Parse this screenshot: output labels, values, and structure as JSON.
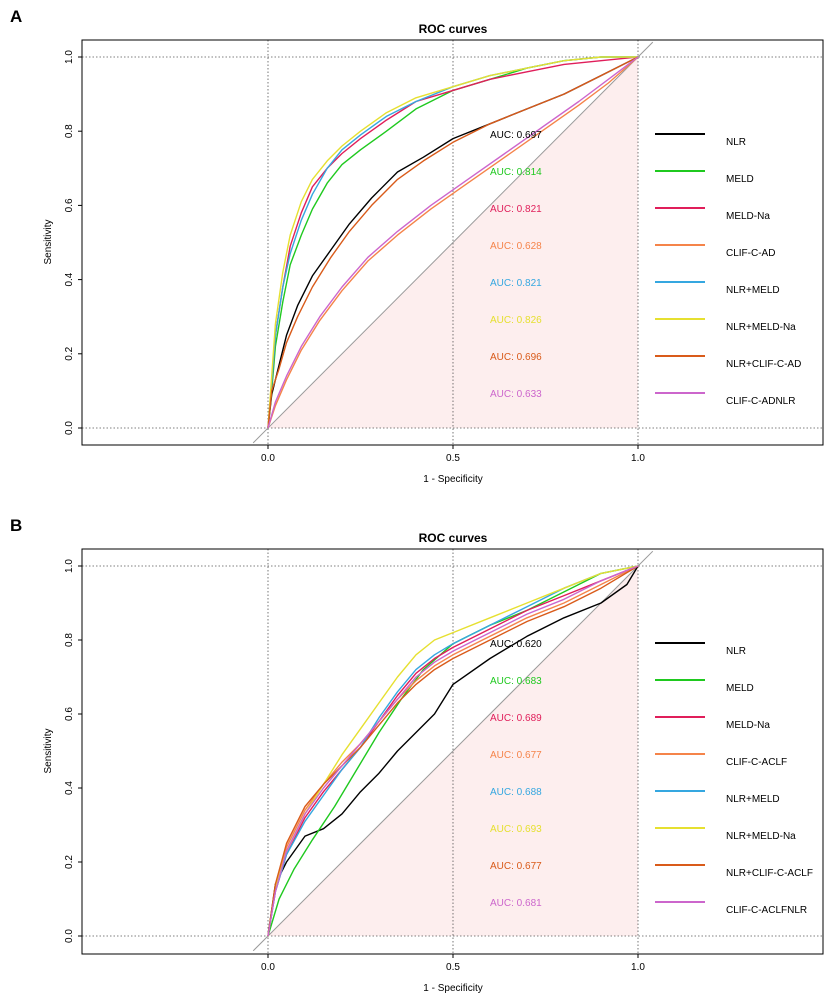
{
  "chart_data": [
    {
      "type": "line",
      "panel": "A",
      "title": "ROC curves",
      "xlabel": "1 - Specificity",
      "ylabel": "Sensitivity",
      "xlim": [
        -0.5,
        1.5
      ],
      "ylim": [
        0,
        1
      ],
      "xticks": [
        "0.0",
        "0.5",
        "1.0"
      ],
      "yticks": [
        "0.0",
        "0.2",
        "0.4",
        "0.6",
        "0.8",
        "1.0"
      ],
      "legend_position": "right",
      "series": [
        {
          "name": "NLR",
          "auc": "AUC: 0.697",
          "color": "#000000",
          "x": [
            0,
            0.01,
            0.03,
            0.05,
            0.08,
            0.12,
            0.17,
            0.22,
            0.28,
            0.35,
            0.42,
            0.5,
            0.6,
            0.7,
            0.8,
            0.9,
            1.0
          ],
          "y": [
            0,
            0.09,
            0.17,
            0.25,
            0.33,
            0.41,
            0.48,
            0.55,
            0.62,
            0.69,
            0.73,
            0.78,
            0.82,
            0.86,
            0.9,
            0.95,
            1.0
          ]
        },
        {
          "name": "MELD",
          "auc": "AUC: 0.814",
          "color": "#1fc91f",
          "x": [
            0,
            0.01,
            0.02,
            0.04,
            0.06,
            0.09,
            0.12,
            0.16,
            0.2,
            0.25,
            0.32,
            0.4,
            0.5,
            0.6,
            0.7,
            0.8,
            0.9,
            1.0
          ],
          "y": [
            0,
            0.1,
            0.22,
            0.34,
            0.44,
            0.52,
            0.59,
            0.66,
            0.71,
            0.75,
            0.8,
            0.86,
            0.91,
            0.94,
            0.97,
            0.99,
            1.0,
            1.0
          ]
        },
        {
          "name": "MELD-Na",
          "auc": "AUC: 0.821",
          "color": "#e01e5a",
          "x": [
            0,
            0.01,
            0.02,
            0.04,
            0.06,
            0.09,
            0.12,
            0.16,
            0.2,
            0.25,
            0.32,
            0.4,
            0.5,
            0.6,
            0.7,
            0.8,
            0.9,
            1.0
          ],
          "y": [
            0,
            0.12,
            0.25,
            0.38,
            0.49,
            0.58,
            0.65,
            0.7,
            0.74,
            0.78,
            0.83,
            0.88,
            0.91,
            0.94,
            0.96,
            0.98,
            0.99,
            1.0
          ]
        },
        {
          "name": "CLIF-C-AD",
          "auc": "AUC: 0.628",
          "color": "#f5844a",
          "x": [
            0,
            0.02,
            0.05,
            0.09,
            0.14,
            0.2,
            0.27,
            0.35,
            0.44,
            0.54,
            0.64,
            0.74,
            0.84,
            0.92,
            1.0
          ],
          "y": [
            0,
            0.06,
            0.13,
            0.21,
            0.29,
            0.37,
            0.45,
            0.52,
            0.59,
            0.66,
            0.73,
            0.8,
            0.87,
            0.93,
            1.0
          ]
        },
        {
          "name": "NLR+MELD",
          "auc": "AUC: 0.821",
          "color": "#35a7e0",
          "x": [
            0,
            0.01,
            0.02,
            0.04,
            0.06,
            0.09,
            0.12,
            0.16,
            0.2,
            0.25,
            0.32,
            0.4,
            0.5,
            0.6,
            0.7,
            0.8,
            0.9,
            1.0
          ],
          "y": [
            0,
            0.12,
            0.25,
            0.38,
            0.47,
            0.56,
            0.63,
            0.7,
            0.75,
            0.79,
            0.84,
            0.88,
            0.92,
            0.95,
            0.97,
            0.99,
            1.0,
            1.0
          ]
        },
        {
          "name": "NLR+MELD-Na",
          "auc": "AUC: 0.826",
          "color": "#e6e030",
          "x": [
            0,
            0.01,
            0.02,
            0.04,
            0.06,
            0.09,
            0.12,
            0.16,
            0.2,
            0.25,
            0.32,
            0.4,
            0.5,
            0.6,
            0.7,
            0.8,
            0.9,
            1.0
          ],
          "y": [
            0,
            0.14,
            0.28,
            0.42,
            0.52,
            0.61,
            0.67,
            0.72,
            0.76,
            0.8,
            0.85,
            0.89,
            0.92,
            0.95,
            0.97,
            0.99,
            1.0,
            1.0
          ]
        },
        {
          "name": "NLR+CLIF-C-AD",
          "auc": "AUC: 0.696",
          "color": "#d95b1a",
          "x": [
            0,
            0.01,
            0.03,
            0.05,
            0.08,
            0.12,
            0.17,
            0.22,
            0.28,
            0.35,
            0.42,
            0.5,
            0.6,
            0.7,
            0.8,
            0.9,
            1.0
          ],
          "y": [
            0,
            0.1,
            0.16,
            0.23,
            0.3,
            0.38,
            0.46,
            0.53,
            0.6,
            0.67,
            0.72,
            0.77,
            0.82,
            0.86,
            0.9,
            0.95,
            1.0
          ]
        },
        {
          "name": "CLIF-C-ADNLR",
          "auc": "AUC: 0.633",
          "color": "#cc66cc",
          "x": [
            0,
            0.02,
            0.05,
            0.09,
            0.14,
            0.2,
            0.27,
            0.35,
            0.44,
            0.54,
            0.64,
            0.74,
            0.84,
            0.92,
            1.0
          ],
          "y": [
            0,
            0.07,
            0.14,
            0.22,
            0.3,
            0.38,
            0.46,
            0.53,
            0.6,
            0.67,
            0.74,
            0.81,
            0.88,
            0.94,
            1.0
          ]
        }
      ]
    },
    {
      "type": "line",
      "panel": "B",
      "title": "ROC curves",
      "xlabel": "1 - Specificity",
      "ylabel": "Sensitivity",
      "xlim": [
        -0.5,
        1.5
      ],
      "ylim": [
        0,
        1
      ],
      "xticks": [
        "0.0",
        "0.5",
        "1.0"
      ],
      "yticks": [
        "0.0",
        "0.2",
        "0.4",
        "0.6",
        "0.8",
        "1.0"
      ],
      "legend_position": "right",
      "series": [
        {
          "name": "NLR",
          "auc": "AUC: 0.620",
          "color": "#000000",
          "x": [
            0,
            0.02,
            0.05,
            0.1,
            0.15,
            0.2,
            0.25,
            0.3,
            0.35,
            0.4,
            0.45,
            0.5,
            0.6,
            0.7,
            0.8,
            0.9,
            0.97,
            1.0
          ],
          "y": [
            0,
            0.14,
            0.2,
            0.27,
            0.29,
            0.33,
            0.39,
            0.44,
            0.5,
            0.55,
            0.6,
            0.68,
            0.75,
            0.81,
            0.86,
            0.9,
            0.95,
            1.0
          ]
        },
        {
          "name": "MELD",
          "auc": "AUC: 0.683",
          "color": "#1fc91f",
          "x": [
            0,
            0.03,
            0.07,
            0.12,
            0.18,
            0.24,
            0.3,
            0.36,
            0.42,
            0.5,
            0.6,
            0.7,
            0.8,
            0.9,
            1.0
          ],
          "y": [
            0,
            0.1,
            0.18,
            0.26,
            0.35,
            0.45,
            0.55,
            0.64,
            0.72,
            0.79,
            0.84,
            0.88,
            0.93,
            0.98,
            1.0
          ]
        },
        {
          "name": "MELD-Na",
          "auc": "AUC: 0.689",
          "color": "#e01e5a",
          "x": [
            0,
            0.02,
            0.05,
            0.1,
            0.15,
            0.2,
            0.25,
            0.3,
            0.35,
            0.4,
            0.45,
            0.5,
            0.6,
            0.7,
            0.8,
            0.9,
            1.0
          ],
          "y": [
            0,
            0.12,
            0.22,
            0.32,
            0.39,
            0.45,
            0.51,
            0.58,
            0.65,
            0.71,
            0.75,
            0.78,
            0.83,
            0.88,
            0.92,
            0.96,
            1.0
          ]
        },
        {
          "name": "CLIF-C-ACLF",
          "auc": "AUC: 0.677",
          "color": "#f5844a",
          "x": [
            0,
            0.02,
            0.05,
            0.1,
            0.15,
            0.2,
            0.25,
            0.3,
            0.35,
            0.4,
            0.45,
            0.5,
            0.6,
            0.7,
            0.8,
            0.9,
            1.0
          ],
          "y": [
            0,
            0.13,
            0.24,
            0.34,
            0.41,
            0.47,
            0.52,
            0.58,
            0.64,
            0.69,
            0.73,
            0.76,
            0.81,
            0.86,
            0.9,
            0.95,
            1.0
          ]
        },
        {
          "name": "NLR+MELD",
          "auc": "AUC: 0.688",
          "color": "#35a7e0",
          "x": [
            0,
            0.02,
            0.05,
            0.1,
            0.15,
            0.2,
            0.25,
            0.3,
            0.35,
            0.4,
            0.45,
            0.5,
            0.6,
            0.7,
            0.8,
            0.9,
            1.0
          ],
          "y": [
            0,
            0.12,
            0.22,
            0.31,
            0.38,
            0.45,
            0.51,
            0.59,
            0.66,
            0.72,
            0.76,
            0.79,
            0.84,
            0.89,
            0.94,
            0.98,
            1.0
          ]
        },
        {
          "name": "NLR+MELD-Na",
          "auc": "AUC: 0.693",
          "color": "#e6e030",
          "x": [
            0,
            0.02,
            0.05,
            0.1,
            0.15,
            0.2,
            0.25,
            0.3,
            0.35,
            0.4,
            0.45,
            0.5,
            0.6,
            0.7,
            0.8,
            0.9,
            1.0
          ],
          "y": [
            0,
            0.13,
            0.23,
            0.33,
            0.41,
            0.49,
            0.56,
            0.63,
            0.7,
            0.76,
            0.8,
            0.82,
            0.86,
            0.9,
            0.94,
            0.98,
            1.0
          ]
        },
        {
          "name": "NLR+CLIF-C-ACLF",
          "auc": "AUC: 0.677",
          "color": "#d95b1a",
          "x": [
            0,
            0.02,
            0.05,
            0.1,
            0.15,
            0.2,
            0.25,
            0.3,
            0.35,
            0.4,
            0.45,
            0.5,
            0.6,
            0.7,
            0.8,
            0.9,
            1.0
          ],
          "y": [
            0,
            0.14,
            0.25,
            0.35,
            0.41,
            0.46,
            0.51,
            0.57,
            0.63,
            0.68,
            0.72,
            0.75,
            0.8,
            0.85,
            0.89,
            0.94,
            1.0
          ]
        },
        {
          "name": "CLIF-C-ACLFNLR",
          "auc": "AUC: 0.681",
          "color": "#cc66cc",
          "x": [
            0,
            0.02,
            0.05,
            0.1,
            0.15,
            0.2,
            0.25,
            0.3,
            0.35,
            0.4,
            0.45,
            0.5,
            0.6,
            0.7,
            0.8,
            0.9,
            1.0
          ],
          "y": [
            0,
            0.12,
            0.23,
            0.33,
            0.4,
            0.46,
            0.52,
            0.58,
            0.64,
            0.7,
            0.74,
            0.77,
            0.82,
            0.87,
            0.91,
            0.96,
            1.0
          ]
        }
      ]
    }
  ]
}
